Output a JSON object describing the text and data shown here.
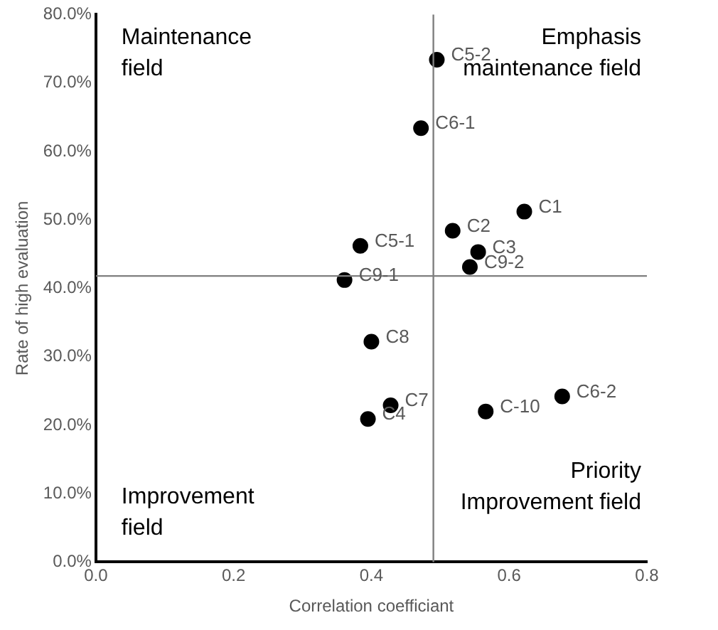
{
  "chart_data": {
    "type": "scatter",
    "xlabel": "Correlation coefficiant",
    "ylabel": "Rate of high evaluation",
    "x": [
      0.495,
      0.472,
      0.622,
      0.518,
      0.555,
      0.543,
      0.384,
      0.361,
      0.4,
      0.428,
      0.395,
      0.566,
      0.677
    ],
    "series": [
      {
        "color": "#000000",
        "values": [
          73.4,
          63.4,
          51.2,
          48.4,
          45.3,
          43.1,
          46.2,
          41.2,
          32.2,
          22.9,
          20.9,
          22.0,
          24.2
        ]
      }
    ],
    "xlim": [
      0,
      0.8
    ],
    "xticks": [
      {
        "value": 0,
        "label": "0.0"
      },
      0.2,
      0.4,
      0.6,
      0.8
    ],
    "ylim": [
      0,
      80
    ],
    "yticks": [
      {
        "value": 0,
        "label": "0.0%"
      },
      {
        "value": 10,
        "label": "10.0%"
      },
      {
        "value": 20,
        "label": "20.0%"
      },
      {
        "value": 30,
        "label": "30.0%"
      },
      {
        "value": 40,
        "label": "40.0%"
      },
      {
        "value": 50,
        "label": "50.0%"
      },
      {
        "value": 60,
        "label": "60.0%"
      },
      {
        "value": 70,
        "label": "70.0%"
      },
      {
        "value": 80,
        "label": "80.0%"
      }
    ],
    "ref_lines": [
      {
        "axis": "x",
        "value": 0.49,
        "color": "#7f7f7f"
      },
      {
        "axis": "y",
        "value": 41.8,
        "color": "#7f7f7f"
      }
    ],
    "grid": false,
    "marker": "circle",
    "annotations": [
      "Maintenance field",
      "Emphasis maintenance field",
      "Improvement field",
      "Priority Improvement field",
      {
        "text": "C5-2",
        "x": 0.495,
        "y": 73.4
      },
      {
        "text": "C6-1",
        "x": 0.472,
        "y": 63.4
      },
      {
        "text": "C1",
        "x": 0.622,
        "y": 51.2
      },
      {
        "text": "C2",
        "x": 0.518,
        "y": 48.4
      },
      {
        "text": "C3",
        "x": 0.555,
        "y": 45.3
      },
      {
        "text": "C9-2",
        "x": 0.543,
        "y": 43.1
      },
      {
        "text": "C5-1",
        "x": 0.384,
        "y": 46.2
      },
      {
        "text": "C9-1",
        "x": 0.361,
        "y": 41.2
      },
      {
        "text": "C8",
        "x": 0.4,
        "y": 32.2
      },
      {
        "text": "C7",
        "x": 0.428,
        "y": 22.9
      },
      {
        "text": "C4",
        "x": 0.395,
        "y": 20.9
      },
      {
        "text": "C-10",
        "x": 0.566,
        "y": 22.0
      },
      {
        "text": "C6-2",
        "x": 0.677,
        "y": 24.2
      }
    ]
  }
}
